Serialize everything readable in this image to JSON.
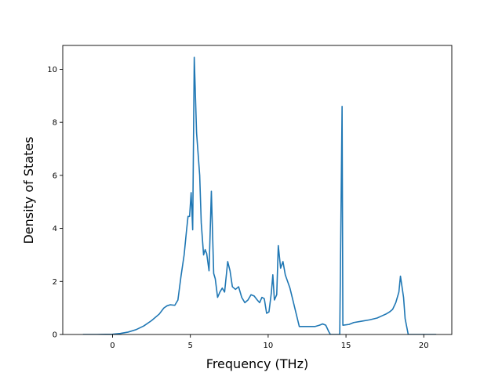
{
  "chart_data": {
    "type": "line",
    "title": "",
    "xlabel": "Frequency (THz)",
    "ylabel": "Density of States",
    "xlim": [
      -3.2,
      21.8
    ],
    "ylim": [
      0,
      10.9
    ],
    "x_ticks": [
      0,
      5,
      10,
      15,
      20
    ],
    "y_ticks": [
      0,
      2,
      4,
      6,
      8,
      10
    ],
    "grid": false,
    "legend": "none",
    "colors": {
      "line": "#1f77b4",
      "axes": "#000000",
      "background": "#ffffff"
    },
    "series": [
      {
        "x": [
          -1.9,
          -1.0,
          0.0,
          0.5,
          1.0,
          1.5,
          2.0,
          2.5,
          3.0,
          3.3,
          3.5,
          3.7,
          4.0,
          4.2,
          4.4,
          4.6,
          4.75,
          4.85,
          4.95,
          5.05,
          5.15,
          5.25,
          5.4,
          5.6,
          5.7,
          5.85,
          5.95,
          6.05,
          6.2,
          6.35,
          6.5,
          6.6,
          6.75,
          6.9,
          7.05,
          7.2,
          7.4,
          7.55,
          7.7,
          7.9,
          8.1,
          8.3,
          8.5,
          8.7,
          8.9,
          9.1,
          9.3,
          9.45,
          9.6,
          9.75,
          9.9,
          10.05,
          10.2,
          10.3,
          10.4,
          10.55,
          10.65,
          10.8,
          10.95,
          11.1,
          11.4,
          12.0,
          13.0,
          13.3,
          13.5,
          13.7,
          13.9,
          14.0,
          14.45,
          14.6,
          14.75,
          14.8,
          15.2,
          15.5,
          16.0,
          16.5,
          17.0,
          17.3,
          17.6,
          17.8,
          18.0,
          18.2,
          18.4,
          18.5,
          18.7,
          18.8,
          19.0,
          19.5,
          20.0,
          20.8
        ],
        "y": [
          0.0,
          0.0,
          0.01,
          0.04,
          0.09,
          0.18,
          0.32,
          0.52,
          0.77,
          1.0,
          1.08,
          1.12,
          1.1,
          1.3,
          2.2,
          3.0,
          3.9,
          4.45,
          4.45,
          5.35,
          3.95,
          10.45,
          7.6,
          6.0,
          4.2,
          3.0,
          3.2,
          3.05,
          2.4,
          5.4,
          2.3,
          2.1,
          1.4,
          1.6,
          1.75,
          1.6,
          2.75,
          2.4,
          1.8,
          1.7,
          1.8,
          1.4,
          1.2,
          1.3,
          1.5,
          1.45,
          1.3,
          1.2,
          1.4,
          1.35,
          0.8,
          0.85,
          1.55,
          2.25,
          1.3,
          1.5,
          3.35,
          2.5,
          2.75,
          2.25,
          1.75,
          0.3,
          0.3,
          0.35,
          0.4,
          0.35,
          0.1,
          0.0,
          0.0,
          0.0,
          8.6,
          0.35,
          0.38,
          0.45,
          0.5,
          0.55,
          0.62,
          0.7,
          0.78,
          0.85,
          0.95,
          1.2,
          1.6,
          2.2,
          1.4,
          0.6,
          0.0,
          0.0,
          0.0,
          0.0
        ]
      }
    ]
  }
}
